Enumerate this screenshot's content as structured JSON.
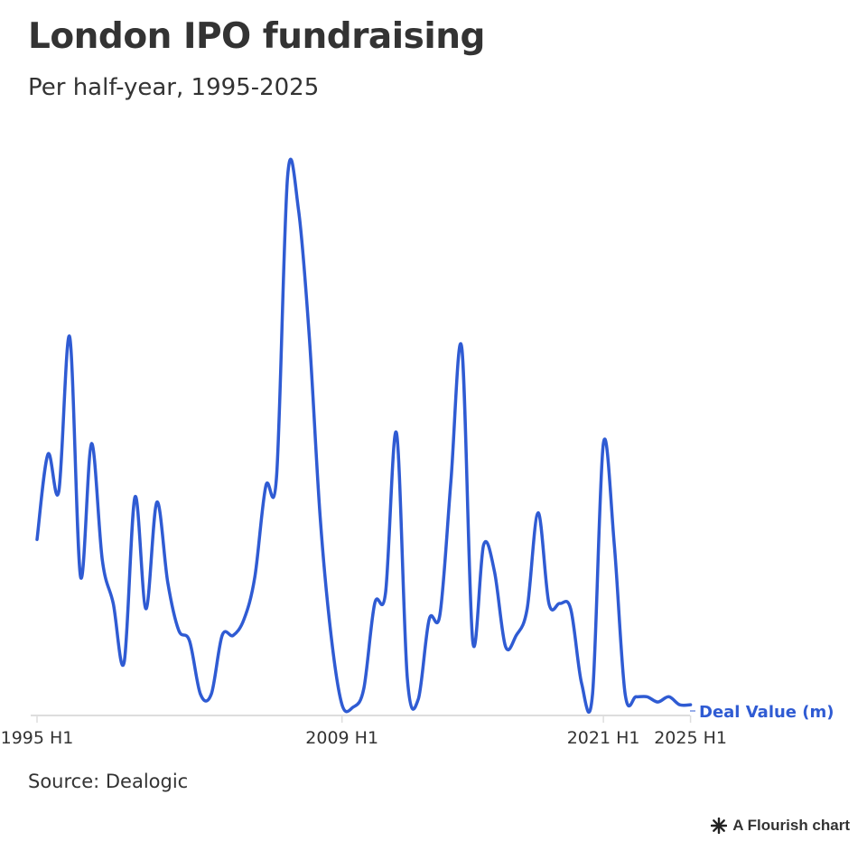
{
  "title": "London IPO fundraising",
  "subtitle": "Per half-year, 1995-2025",
  "source": "Source: Dealogic",
  "credit": "A Flourish chart",
  "colors": {
    "series": "#2f5bd3",
    "text": "#333333",
    "axis": "#dddddd"
  },
  "chart_data": {
    "type": "line",
    "series": [
      {
        "name": "Deal Value (m)",
        "values": [
          32,
          48,
          41,
          70,
          25,
          50,
          28,
          20,
          9,
          40,
          19,
          39,
          24,
          15,
          13,
          3,
          3,
          14,
          14,
          17,
          25,
          42,
          44,
          100,
          94,
          70,
          36,
          14,
          1,
          0.5,
          4,
          20,
          22,
          52,
          6,
          2,
          17,
          18,
          43,
          68,
          13,
          31,
          26,
          12,
          14,
          19,
          37,
          20,
          20,
          19,
          5,
          3,
          50,
          31,
          3,
          2.5,
          2.5,
          1.5,
          2.5,
          1,
          1
        ]
      }
    ],
    "x_tick_labels": [
      "1995 H1",
      "2009 H1",
      "2021 H1",
      "2025 H1"
    ],
    "ylim": [
      0,
      100
    ],
    "grid": false,
    "legend": "end-of-line label"
  }
}
